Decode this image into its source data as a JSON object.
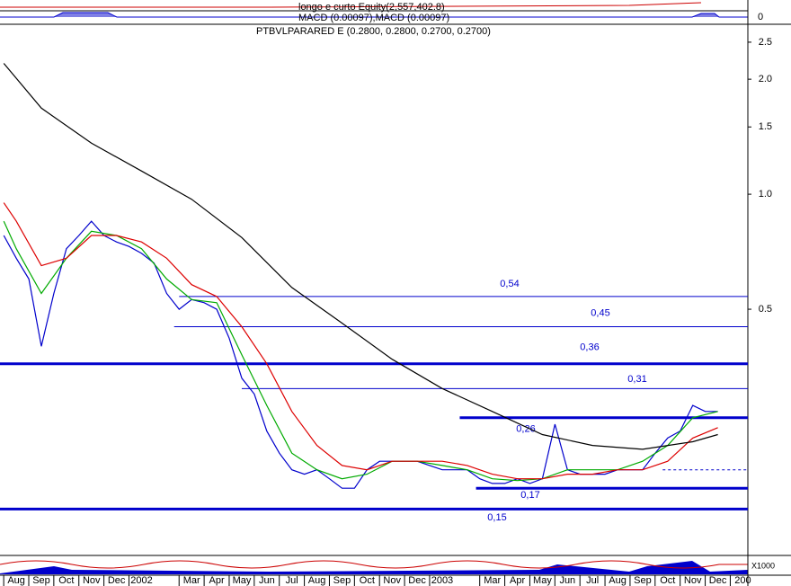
{
  "chart_data": {
    "type": "line",
    "title": "PTBVLPARARED E (0.2800, 0.2800, 0.2700, 0.2700)",
    "equity_label": "longo e curto Equity(2,557,402.8)",
    "macd_label": "MACD (0.00097),MACD (0.00097)",
    "macd_tick": 0,
    "volume_label": "X1000",
    "log_scale": true,
    "xlim": [
      -0.65,
      29.2
    ],
    "ylim": [
      0.114,
      2.77
    ],
    "xticks": [
      {
        "value": 0,
        "label": "Aug"
      },
      {
        "value": 1,
        "label": "Sep"
      },
      {
        "value": 2,
        "label": "Oct"
      },
      {
        "value": 3,
        "label": "Nov"
      },
      {
        "value": 4,
        "label": "Dec"
      },
      {
        "value": 5,
        "label": "2002"
      },
      {
        "value": 7,
        "label": "Mar"
      },
      {
        "value": 8,
        "label": "Apr"
      },
      {
        "value": 9,
        "label": "May"
      },
      {
        "value": 10,
        "label": "Jun"
      },
      {
        "value": 11,
        "label": "Jul"
      },
      {
        "value": 12,
        "label": "Aug"
      },
      {
        "value": 13,
        "label": "Sep"
      },
      {
        "value": 14,
        "label": "Oct"
      },
      {
        "value": 15,
        "label": "Nov"
      },
      {
        "value": 16,
        "label": "Dec"
      },
      {
        "value": 17,
        "label": "2003"
      },
      {
        "value": 19,
        "label": "Mar"
      },
      {
        "value": 20,
        "label": "Apr"
      },
      {
        "value": 21,
        "label": "May"
      },
      {
        "value": 22,
        "label": "Jun"
      },
      {
        "value": 23,
        "label": "Jul"
      },
      {
        "value": 24,
        "label": "Aug"
      },
      {
        "value": 25,
        "label": "Sep"
      },
      {
        "value": 26,
        "label": "Oct"
      },
      {
        "value": 27,
        "label": "Nov"
      },
      {
        "value": 28,
        "label": "Dec"
      },
      {
        "value": 29,
        "label": "200"
      }
    ],
    "yticks": [
      0.5,
      {
        "value": 1,
        "label": "1.0"
      },
      1.5,
      {
        "value": 2,
        "label": "2.0"
      },
      2.5
    ],
    "series": [
      {
        "color": "#0000cc",
        "x": [
          -0.5,
          0,
          0.5,
          1,
          1.5,
          2,
          2.5,
          3,
          3.5,
          4,
          4.5,
          5,
          5.5,
          6,
          6.5,
          7,
          7.5,
          8,
          8.5,
          9,
          9.5,
          10,
          10.5,
          11,
          11.5,
          12,
          12.5,
          13,
          13.5,
          14,
          14.5,
          15,
          15.5,
          16,
          16.5,
          17,
          17.5,
          18,
          18.5,
          19,
          19.5,
          20,
          20.5,
          21,
          21.5,
          22,
          22.5,
          23,
          23.5,
          24,
          24.5,
          25,
          25.5,
          26,
          26.5,
          27,
          27.5,
          28
        ],
        "values": [
          0.78,
          0.68,
          0.6,
          0.4,
          0.55,
          0.72,
          0.78,
          0.85,
          0.78,
          0.75,
          0.73,
          0.7,
          0.66,
          0.55,
          0.5,
          0.53,
          0.52,
          0.5,
          0.42,
          0.33,
          0.3,
          0.24,
          0.21,
          0.19,
          0.185,
          0.19,
          0.18,
          0.17,
          0.17,
          0.19,
          0.2,
          0.2,
          0.2,
          0.2,
          0.195,
          0.19,
          0.19,
          0.19,
          0.18,
          0.175,
          0.175,
          0.18,
          0.175,
          0.18,
          0.25,
          0.19,
          0.185,
          0.185,
          0.185,
          0.19,
          0.19,
          0.19,
          0.21,
          0.23,
          0.24,
          0.28,
          0.27,
          0.27
        ]
      },
      {
        "color": "#00aa00",
        "x": [
          -0.5,
          0,
          1,
          2,
          3,
          4,
          5,
          6,
          7,
          8,
          9,
          10,
          11,
          12,
          13,
          14,
          15,
          16,
          17,
          18,
          19,
          20,
          21,
          22,
          23,
          24,
          25,
          26,
          27,
          28
        ],
        "values": [
          0.85,
          0.72,
          0.55,
          0.68,
          0.8,
          0.78,
          0.72,
          0.6,
          0.53,
          0.52,
          0.38,
          0.28,
          0.21,
          0.19,
          0.18,
          0.185,
          0.2,
          0.2,
          0.195,
          0.19,
          0.18,
          0.178,
          0.18,
          0.19,
          0.19,
          0.19,
          0.2,
          0.22,
          0.26,
          0.27
        ]
      },
      {
        "color": "#dd0000",
        "x": [
          -0.5,
          0,
          1,
          2,
          3,
          4,
          5,
          6,
          7,
          8,
          9,
          10,
          11,
          12,
          13,
          14,
          15,
          16,
          17,
          18,
          19,
          20,
          21,
          22,
          23,
          24,
          25,
          26,
          27,
          28
        ],
        "values": [
          0.95,
          0.85,
          0.65,
          0.68,
          0.78,
          0.78,
          0.75,
          0.68,
          0.58,
          0.54,
          0.45,
          0.36,
          0.27,
          0.22,
          0.195,
          0.19,
          0.2,
          0.2,
          0.2,
          0.195,
          0.185,
          0.18,
          0.18,
          0.185,
          0.185,
          0.19,
          0.19,
          0.2,
          0.23,
          0.245
        ]
      },
      {
        "color": "#000000",
        "x": [
          -0.5,
          1,
          3,
          5,
          7,
          9,
          11,
          13,
          15,
          17,
          19,
          21,
          23,
          25,
          27,
          28
        ],
        "values": [
          2.2,
          1.68,
          1.36,
          1.15,
          0.97,
          0.77,
          0.57,
          0.46,
          0.37,
          0.31,
          0.27,
          0.235,
          0.22,
          0.215,
          0.225,
          0.235
        ]
      }
    ],
    "levels": [
      {
        "value": 0.54,
        "label": "0,54",
        "from": 6.5,
        "style": "thin"
      },
      {
        "value": 0.45,
        "label": "0,45",
        "from": 6.3,
        "style": "thin"
      },
      {
        "value": 0.36,
        "label": "0,36",
        "from": -0.65,
        "style": "thick"
      },
      {
        "value": 0.31,
        "label": "0,31",
        "from": 9,
        "style": "thin"
      },
      {
        "value": 0.26,
        "label": "0,26",
        "from": 17.7,
        "style": "thick"
      },
      {
        "value": 0.17,
        "label": "0,17",
        "from": 18.35,
        "style": "thick"
      },
      {
        "value": 0.15,
        "label": "0,15",
        "from": -0.65,
        "style": "thick"
      },
      {
        "value": 0.19,
        "from": 25.8,
        "style": "dashed"
      }
    ]
  }
}
